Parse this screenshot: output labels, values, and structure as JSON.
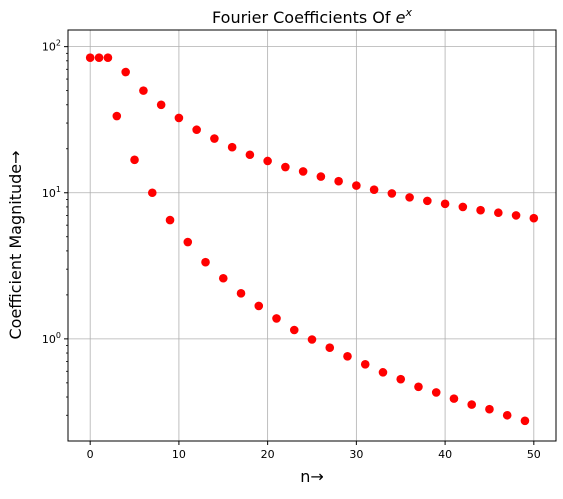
{
  "chart_data": {
    "type": "scatter",
    "title_main": "Fourier Coefficients Of ",
    "title_base": "e",
    "title_exp": "x",
    "xlabel": "n→",
    "ylabel": "Coefficient Magnitude→",
    "xlim": [
      -2.5,
      52.5
    ],
    "ylim": [
      0.2,
      130
    ],
    "yscale": "log",
    "grid": true,
    "marker_color": "#ff0000",
    "x_ticks": [
      0,
      10,
      20,
      30,
      40,
      50
    ],
    "x_tick_labels": [
      "0",
      "10",
      "20",
      "30",
      "40",
      "50"
    ],
    "y_ticks": [
      {
        "value": 100,
        "base": "10",
        "exp": "2"
      },
      {
        "value": 10,
        "base": "10",
        "exp": "1"
      },
      {
        "value": 1,
        "base": "10",
        "exp": "0"
      }
    ],
    "points": [
      [
        0,
        84
      ],
      [
        1,
        84
      ],
      [
        2,
        84
      ],
      [
        3,
        33.5
      ],
      [
        4,
        67
      ],
      [
        5,
        16.8
      ],
      [
        6,
        50
      ],
      [
        7,
        10
      ],
      [
        8,
        40
      ],
      [
        9,
        6.5
      ],
      [
        10,
        32.5
      ],
      [
        11,
        4.6
      ],
      [
        12,
        27
      ],
      [
        13,
        3.35
      ],
      [
        14,
        23.5
      ],
      [
        15,
        2.6
      ],
      [
        16,
        20.5
      ],
      [
        17,
        2.05
      ],
      [
        18,
        18.2
      ],
      [
        19,
        1.68
      ],
      [
        20,
        16.5
      ],
      [
        21,
        1.38
      ],
      [
        22,
        15
      ],
      [
        23,
        1.15
      ],
      [
        24,
        14
      ],
      [
        25,
        0.99
      ],
      [
        26,
        12.9
      ],
      [
        27,
        0.87
      ],
      [
        28,
        12
      ],
      [
        29,
        0.76
      ],
      [
        30,
        11.2
      ],
      [
        31,
        0.67
      ],
      [
        32,
        10.5
      ],
      [
        33,
        0.59
      ],
      [
        34,
        9.9
      ],
      [
        35,
        0.53
      ],
      [
        36,
        9.3
      ],
      [
        37,
        0.47
      ],
      [
        38,
        8.8
      ],
      [
        39,
        0.43
      ],
      [
        40,
        8.4
      ],
      [
        41,
        0.39
      ],
      [
        42,
        8
      ],
      [
        43,
        0.355
      ],
      [
        44,
        7.6
      ],
      [
        45,
        0.33
      ],
      [
        46,
        7.3
      ],
      [
        47,
        0.3
      ],
      [
        48,
        7
      ],
      [
        49,
        0.275
      ],
      [
        50,
        6.7
      ]
    ]
  }
}
